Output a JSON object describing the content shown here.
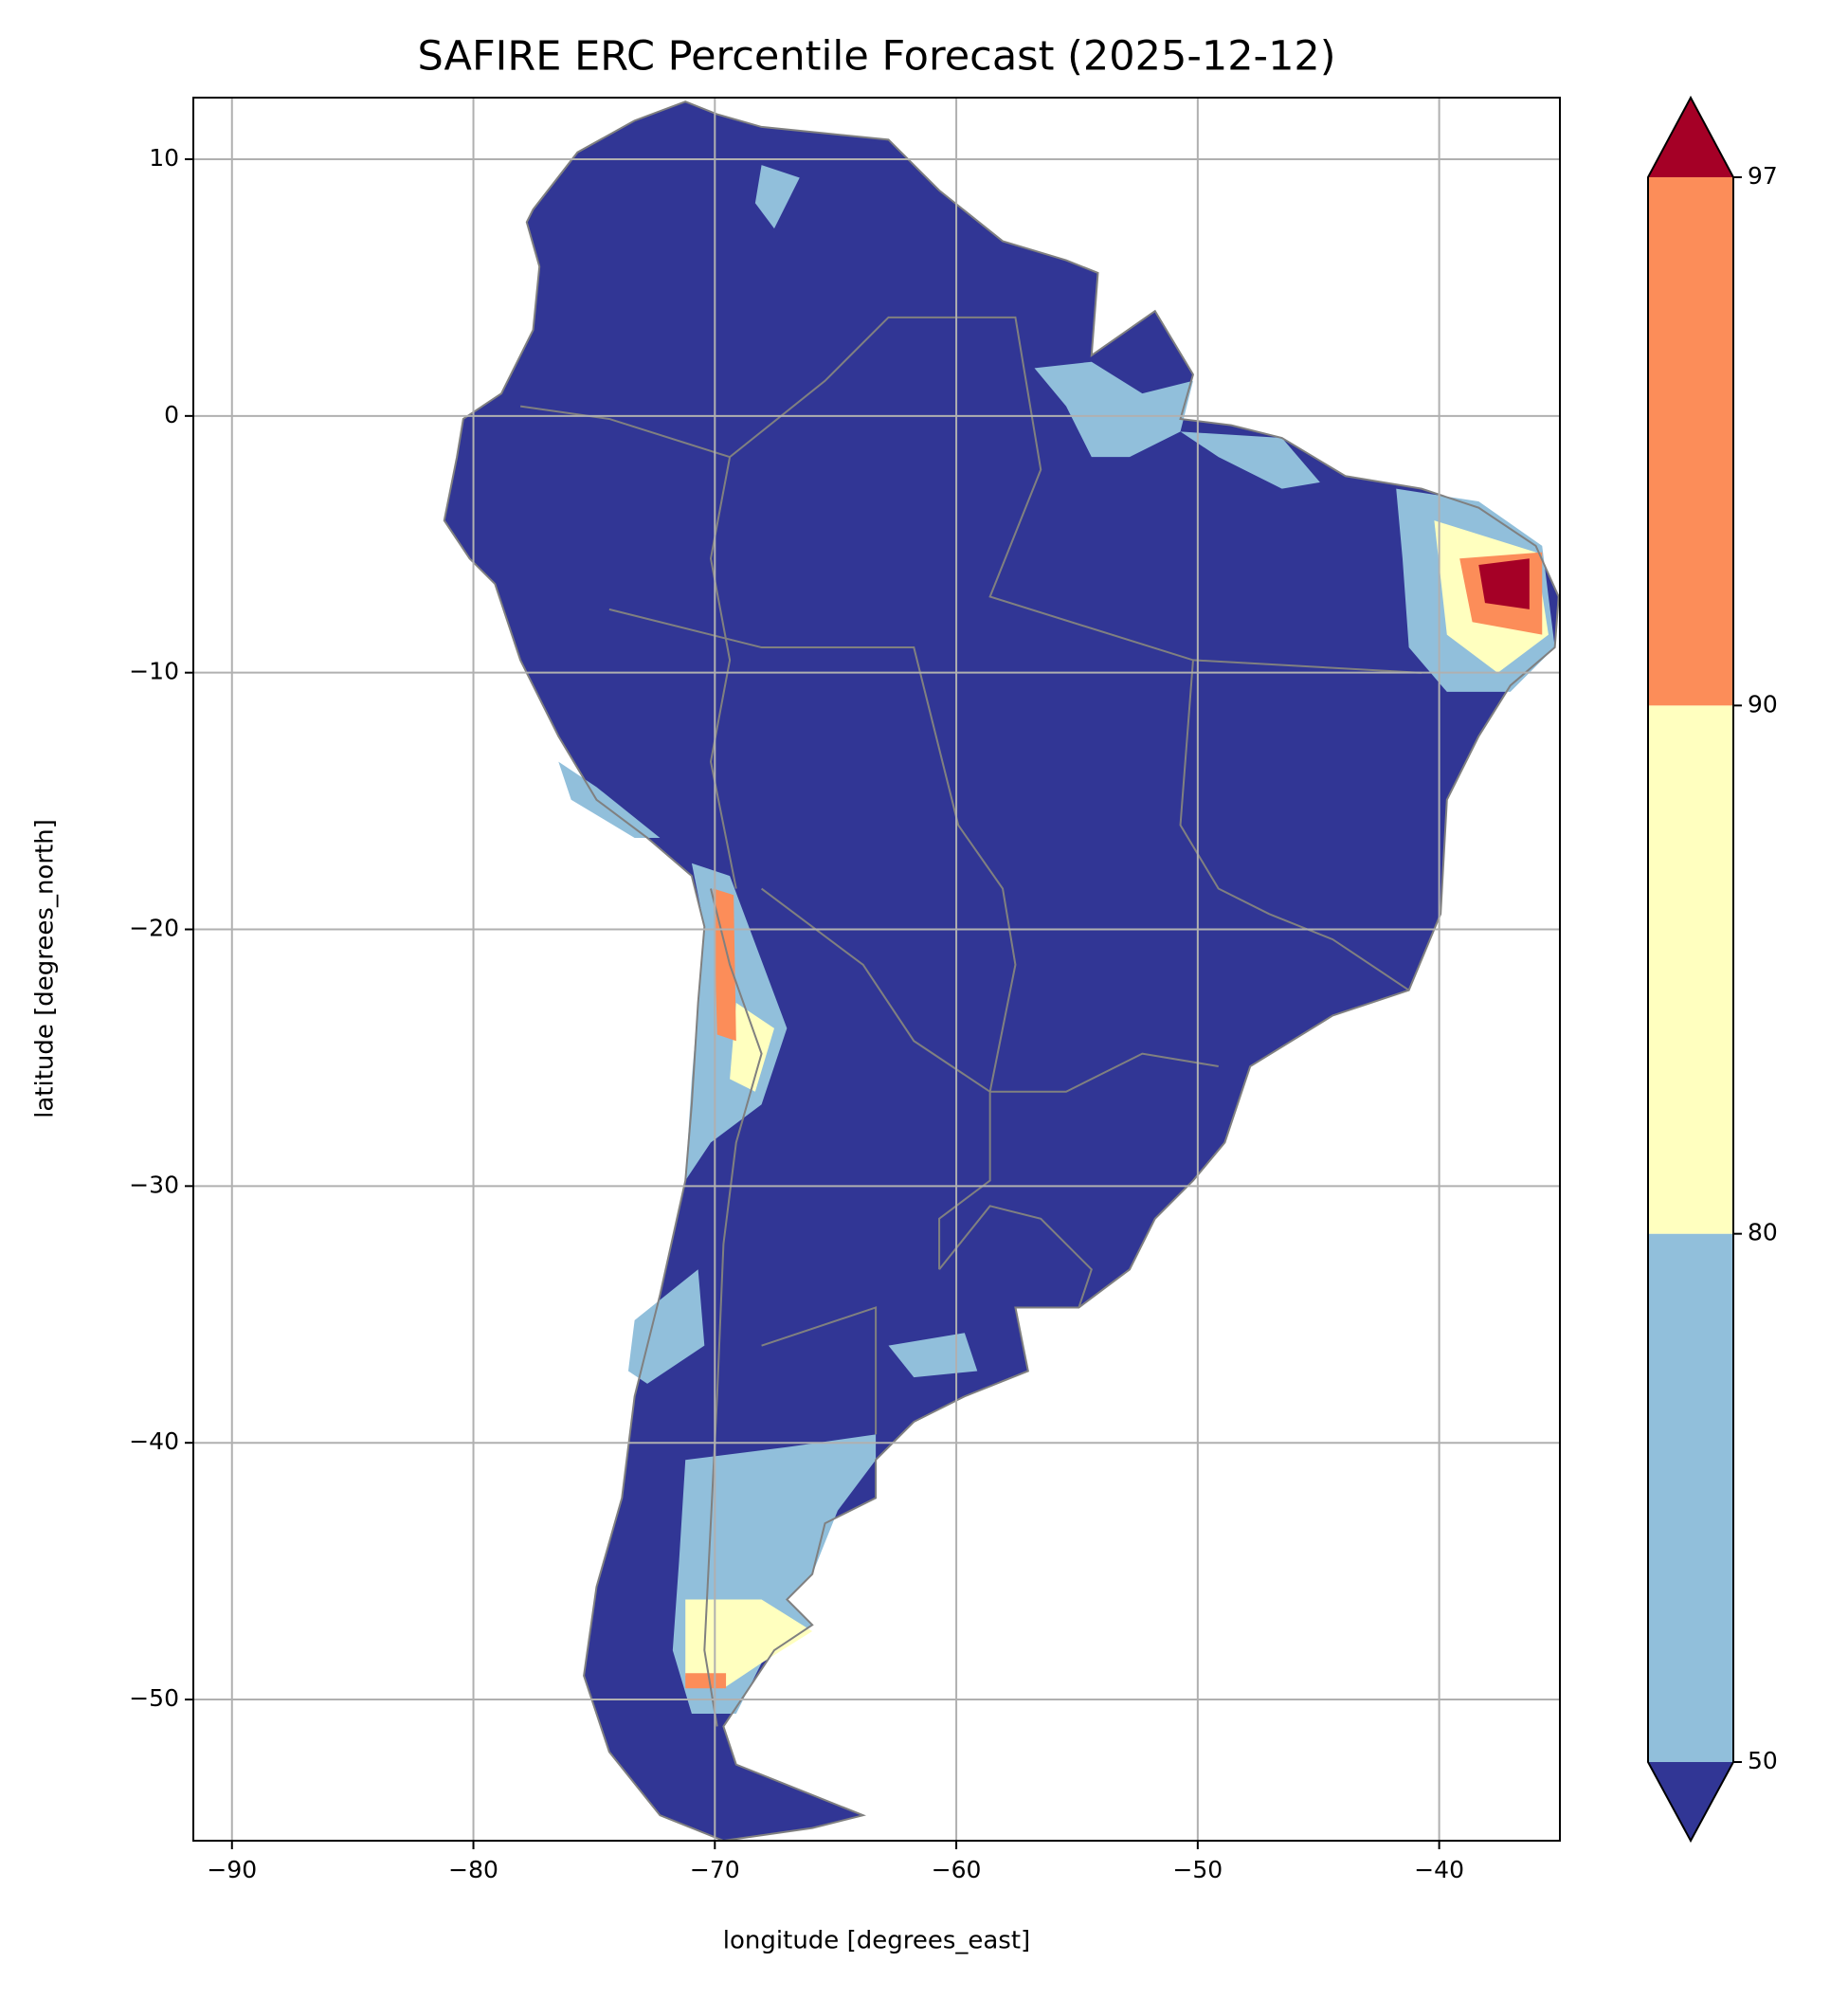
{
  "chart_data": {
    "type": "map",
    "title": "SAFIRE ERC Percentile Forecast (2025-12-12)",
    "xlabel": "longitude [degrees_east]",
    "ylabel": "latitude [degrees_north]",
    "xlim": [
      -91.6,
      -35.0
    ],
    "ylim": [
      -55.5,
      12.4
    ],
    "xticks": [
      {
        "value": -90,
        "label": "−90"
      },
      {
        "value": -80,
        "label": "−80"
      },
      {
        "value": -70,
        "label": "−70"
      },
      {
        "value": -60,
        "label": "−60"
      },
      {
        "value": -50,
        "label": "−50"
      },
      {
        "value": -40,
        "label": "−40"
      }
    ],
    "yticks": [
      10,
      0,
      {
        "value": -10,
        "label": "−10"
      },
      {
        "value": -20,
        "label": "−20"
      },
      {
        "value": -30,
        "label": "−30"
      },
      {
        "value": -40,
        "label": "−40"
      },
      {
        "value": -50,
        "label": "−50"
      }
    ],
    "grid": true,
    "border_color": "#808080",
    "colorbar": {
      "levels": [
        50,
        80,
        90,
        97
      ],
      "colors": [
        "#91bfdb",
        "#ffffbf",
        "#fc8d59"
      ],
      "under_color": "#313695",
      "over_color": "#a50026",
      "extend": "both"
    }
  }
}
